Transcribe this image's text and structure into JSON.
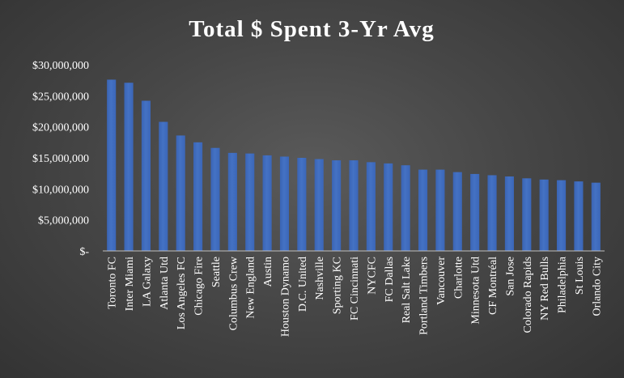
{
  "chart_data": {
    "type": "bar",
    "title": "Total $ Spent 3-Yr Avg",
    "xlabel": "",
    "ylabel": "",
    "ylim": [
      0,
      30000000
    ],
    "yticks": [
      0,
      5000000,
      10000000,
      15000000,
      20000000,
      25000000,
      30000000
    ],
    "ytick_labels": [
      "$-",
      "$5,000,000",
      "$10,000,000",
      "$15,000,000",
      "$20,000,000",
      "$25,000,000",
      "$30,000,000"
    ],
    "grid": false,
    "legend": "none",
    "bar_color": "#4472c4",
    "categories": [
      "Toronto FC",
      "Inter Miami",
      "LA Galaxy",
      "Atlanta Utd",
      "Los Angeles FC",
      "Chicago Fire",
      "Seattle",
      "Columbus Crew",
      "New England",
      "Austin",
      "Houston Dynamo",
      "D.C. United",
      "Nashville",
      "Sporting KC",
      "FC Cincinnati",
      "NYCFC",
      "FC Dallas",
      "Real Salt Lake",
      "Portland Timbers",
      "Vancouver",
      "Charlotte",
      "Minnesota Utd",
      "CF Montréal",
      "San Jose",
      "Colorado Rapids",
      "NY Red Bulls",
      "Philadelphia",
      "St Louis",
      "Orlando City"
    ],
    "values": [
      27600000,
      27100000,
      24200000,
      20800000,
      18600000,
      17500000,
      16600000,
      15800000,
      15700000,
      15400000,
      15200000,
      15000000,
      14800000,
      14600000,
      14600000,
      14300000,
      14100000,
      13800000,
      13100000,
      13100000,
      12700000,
      12400000,
      12200000,
      12000000,
      11700000,
      11500000,
      11400000,
      11200000,
      11000000
    ]
  }
}
